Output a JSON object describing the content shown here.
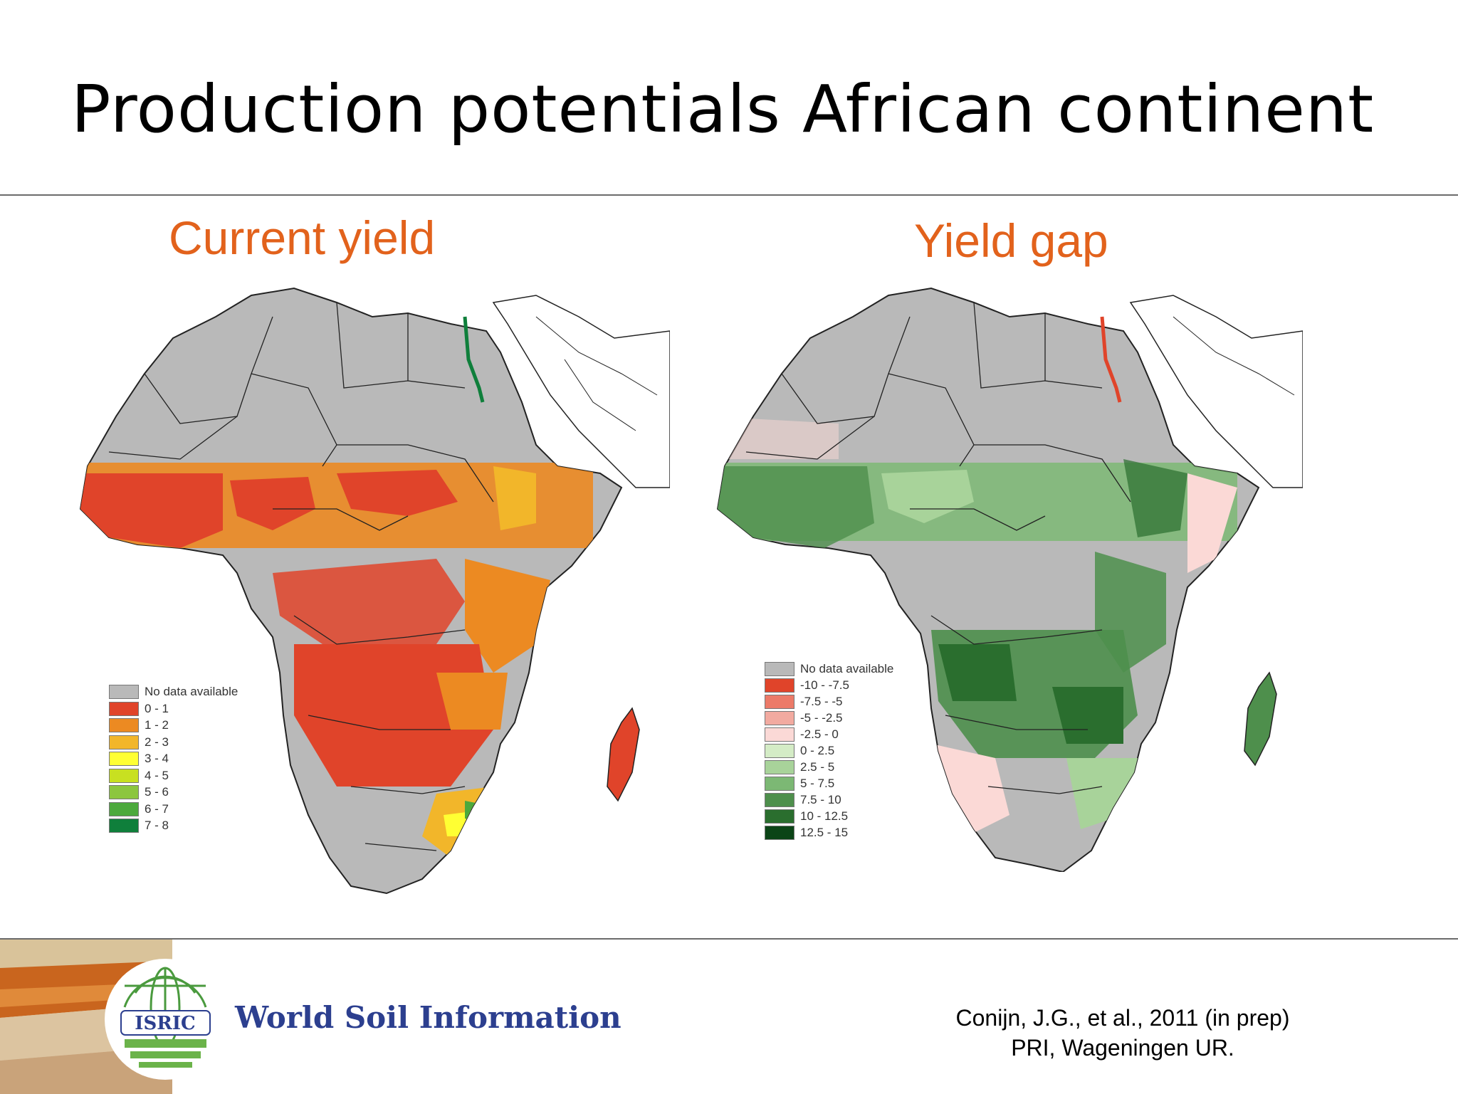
{
  "slide": {
    "title": "Production potentials African continent",
    "left_panel_title": "Current yield",
    "right_panel_title": "Yield gap",
    "citation_line1": "Conijn, J.G., et al., 2011 (in prep)",
    "citation_line2": "PRI, Wageningen UR."
  },
  "logo": {
    "badge_text": "ISRIC",
    "brand_text": "World Soil Information",
    "icon": "globe-icon"
  },
  "colors": {
    "panel_title": "#e2621c",
    "brand": "#2c3f8f",
    "no_data": "#b9b9b9"
  },
  "legend_left": {
    "items": [
      {
        "label": "No data available",
        "color": "#b9b9b9"
      },
      {
        "label": "0 - 1",
        "color": "#e0442a"
      },
      {
        "label": "1 - 2",
        "color": "#ec8a22"
      },
      {
        "label": "2 - 3",
        "color": "#f2b62a"
      },
      {
        "label": "3 - 4",
        "color": "#ffff33"
      },
      {
        "label": "4 - 5",
        "color": "#c8e021"
      },
      {
        "label": "5 - 6",
        "color": "#8cc63f"
      },
      {
        "label": "6 - 7",
        "color": "#4ca93c"
      },
      {
        "label": "7 - 8",
        "color": "#0f7f3b"
      }
    ]
  },
  "legend_right": {
    "items": [
      {
        "label": "No data available",
        "color": "#b9b9b9"
      },
      {
        "label": "-10 - -7.5",
        "color": "#e0442a"
      },
      {
        "label": "-7.5 - -5",
        "color": "#ec7a68"
      },
      {
        "label": "-5 - -2.5",
        "color": "#f2aaa0"
      },
      {
        "label": "-2.5 - 0",
        "color": "#fbd9d6"
      },
      {
        "label": "0 - 2.5",
        "color": "#d4ecc6"
      },
      {
        "label": "2.5 - 5",
        "color": "#a8d39a"
      },
      {
        "label": "5 - 7.5",
        "color": "#7cb874"
      },
      {
        "label": "7.5 - 10",
        "color": "#4e8f4c"
      },
      {
        "label": "10 - 12.5",
        "color": "#2a6e2e"
      },
      {
        "label": "12.5 - 15",
        "color": "#0b4416"
      }
    ]
  }
}
